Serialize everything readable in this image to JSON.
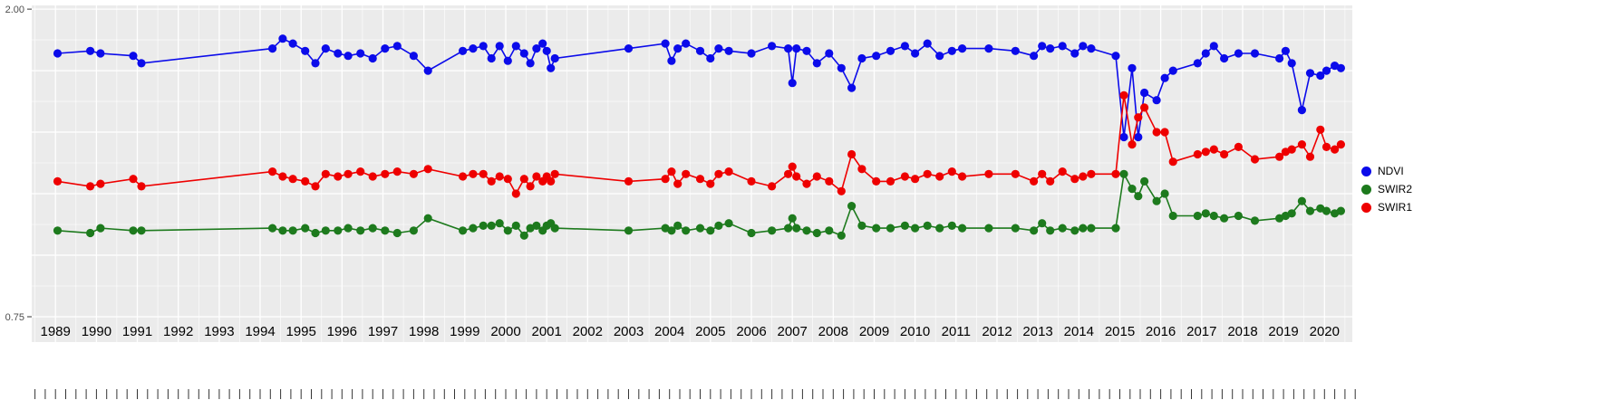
{
  "figure": {
    "background": "#ffffff",
    "panel_background": "#ebebeb",
    "grid_color": "#ffffff",
    "tick_color": "#333333",
    "text_color": "#000000",
    "axis_label_color": "#4d4d4d"
  },
  "y_axis": {
    "ticks": [
      {
        "label": "2.00",
        "value": 2.0
      },
      {
        "label": "0.75",
        "value": 0.75
      }
    ],
    "major_gridlines": [
      0.75,
      1.0,
      1.25,
      1.5,
      1.75,
      2.0
    ],
    "minor_gridlines": [
      0.875,
      1.125,
      1.375,
      1.625,
      1.875
    ]
  },
  "x_axis": {
    "tick_labels": [
      "1989",
      "1990",
      "1991",
      "1992",
      "1993",
      "1994",
      "1995",
      "1996",
      "1997",
      "1998",
      "1999",
      "2000",
      "2001",
      "2002",
      "2003",
      "2004",
      "2005",
      "2006",
      "2007",
      "2008",
      "2009",
      "2010",
      "2011",
      "2012",
      "2013",
      "2014",
      "2015",
      "2016",
      "2017",
      "2018",
      "2019",
      "2020"
    ]
  },
  "legend": {
    "position": "right",
    "items": [
      {
        "label": "NDVI",
        "color": "#0b0bea"
      },
      {
        "label": "SWIR2",
        "color": "#1d7a1d"
      },
      {
        "label": "SWIR1",
        "color": "#ee0000"
      }
    ]
  },
  "chart_data": {
    "type": "line",
    "title": "",
    "xlabel": "",
    "ylabel": "",
    "grid": true,
    "legend_position": "right",
    "x_range": [
      1988.42,
      2020.68
    ],
    "y_range": [
      0.647,
      2.015
    ],
    "x": [
      1989.05,
      1989.85,
      1990.1,
      1990.9,
      1991.1,
      1994.3,
      1994.55,
      1994.8,
      1995.1,
      1995.35,
      1995.6,
      1995.9,
      1996.15,
      1996.45,
      1996.75,
      1997.05,
      1997.35,
      1997.75,
      1998.1,
      1998.95,
      1999.2,
      1999.45,
      1999.65,
      1999.85,
      2000.05,
      2000.25,
      2000.45,
      2000.6,
      2000.75,
      2000.9,
      2001.0,
      2001.1,
      2001.2,
      2003.0,
      2003.9,
      2004.05,
      2004.2,
      2004.4,
      2004.75,
      2005.0,
      2005.2,
      2005.45,
      2006.0,
      2006.5,
      2006.9,
      2007.0,
      2007.1,
      2007.35,
      2007.6,
      2007.9,
      2008.2,
      2008.45,
      2008.7,
      2009.05,
      2009.4,
      2009.75,
      2010.0,
      2010.3,
      2010.6,
      2010.9,
      2011.15,
      2011.8,
      2012.45,
      2012.9,
      2013.1,
      2013.3,
      2013.6,
      2013.9,
      2014.1,
      2014.3,
      2014.9,
      2015.1,
      2015.3,
      2015.45,
      2015.6,
      2015.9,
      2016.1,
      2016.3,
      2016.9,
      2017.1,
      2017.3,
      2017.55,
      2017.9,
      2018.3,
      2018.9,
      2019.05,
      2019.2,
      2019.45,
      2019.65,
      2019.9,
      2020.05,
      2020.25,
      2020.4
    ],
    "series": [
      {
        "name": "NDVI",
        "color": "#0b0bea",
        "values": [
          1.82,
          1.83,
          1.82,
          1.81,
          1.78,
          1.84,
          1.88,
          1.86,
          1.83,
          1.78,
          1.84,
          1.82,
          1.81,
          1.82,
          1.8,
          1.84,
          1.85,
          1.81,
          1.75,
          1.83,
          1.84,
          1.85,
          1.8,
          1.85,
          1.79,
          1.85,
          1.82,
          1.78,
          1.84,
          1.86,
          1.83,
          1.76,
          1.8,
          1.84,
          1.86,
          1.79,
          1.84,
          1.86,
          1.83,
          1.8,
          1.84,
          1.83,
          1.82,
          1.85,
          1.84,
          1.7,
          1.84,
          1.83,
          1.78,
          1.82,
          1.76,
          1.68,
          1.8,
          1.81,
          1.83,
          1.85,
          1.82,
          1.86,
          1.81,
          1.83,
          1.84,
          1.84,
          1.83,
          1.81,
          1.85,
          1.84,
          1.85,
          1.82,
          1.85,
          1.84,
          1.81,
          1.48,
          1.76,
          1.48,
          1.66,
          1.63,
          1.72,
          1.75,
          1.78,
          1.82,
          1.85,
          1.8,
          1.82,
          1.82,
          1.8,
          1.83,
          1.78,
          1.59,
          1.74,
          1.73,
          1.75,
          1.77,
          1.76
        ]
      },
      {
        "name": "SWIR2",
        "color": "#1d7a1d",
        "values": [
          1.1,
          1.09,
          1.11,
          1.1,
          1.1,
          1.11,
          1.1,
          1.1,
          1.11,
          1.09,
          1.1,
          1.1,
          1.11,
          1.1,
          1.11,
          1.1,
          1.09,
          1.1,
          1.15,
          1.1,
          1.11,
          1.12,
          1.12,
          1.13,
          1.1,
          1.12,
          1.08,
          1.11,
          1.12,
          1.1,
          1.12,
          1.13,
          1.11,
          1.1,
          1.11,
          1.1,
          1.12,
          1.1,
          1.11,
          1.1,
          1.12,
          1.13,
          1.09,
          1.1,
          1.11,
          1.15,
          1.11,
          1.1,
          1.09,
          1.1,
          1.08,
          1.2,
          1.12,
          1.11,
          1.11,
          1.12,
          1.11,
          1.12,
          1.11,
          1.12,
          1.11,
          1.11,
          1.11,
          1.1,
          1.13,
          1.1,
          1.11,
          1.1,
          1.11,
          1.11,
          1.11,
          1.33,
          1.27,
          1.24,
          1.3,
          1.22,
          1.25,
          1.16,
          1.16,
          1.17,
          1.16,
          1.15,
          1.16,
          1.14,
          1.15,
          1.16,
          1.17,
          1.22,
          1.18,
          1.19,
          1.18,
          1.17,
          1.18
        ]
      },
      {
        "name": "SWIR1",
        "color": "#ee0000",
        "values": [
          1.3,
          1.28,
          1.29,
          1.31,
          1.28,
          1.34,
          1.32,
          1.31,
          1.3,
          1.28,
          1.33,
          1.32,
          1.33,
          1.34,
          1.32,
          1.33,
          1.34,
          1.33,
          1.35,
          1.32,
          1.33,
          1.33,
          1.3,
          1.32,
          1.31,
          1.25,
          1.31,
          1.28,
          1.32,
          1.3,
          1.32,
          1.3,
          1.33,
          1.3,
          1.31,
          1.34,
          1.29,
          1.33,
          1.31,
          1.29,
          1.33,
          1.34,
          1.3,
          1.28,
          1.33,
          1.36,
          1.32,
          1.29,
          1.32,
          1.3,
          1.26,
          1.41,
          1.35,
          1.3,
          1.3,
          1.32,
          1.31,
          1.33,
          1.32,
          1.34,
          1.32,
          1.33,
          1.33,
          1.3,
          1.33,
          1.3,
          1.34,
          1.31,
          1.32,
          1.33,
          1.33,
          1.65,
          1.45,
          1.56,
          1.6,
          1.5,
          1.5,
          1.38,
          1.41,
          1.42,
          1.43,
          1.41,
          1.44,
          1.39,
          1.4,
          1.42,
          1.43,
          1.45,
          1.4,
          1.51,
          1.44,
          1.43,
          1.45
        ]
      }
    ]
  }
}
